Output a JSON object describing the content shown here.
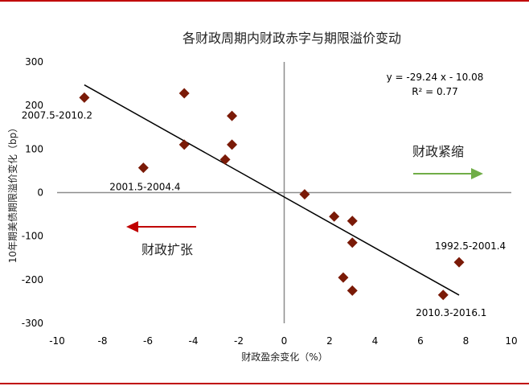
{
  "chart_data": {
    "type": "scatter",
    "title": "各财政周期内财政赤字与期限溢价变动",
    "xlabel": "财政盈余变化（%）",
    "ylabel": "10年期美债期限溢价变化（bp）",
    "xlim": [
      -10,
      10
    ],
    "ylim": [
      -300,
      300
    ],
    "xticks": [
      -10,
      -8,
      -6,
      -4,
      -2,
      0,
      2,
      4,
      6,
      8,
      10
    ],
    "yticks": [
      -300,
      -200,
      -100,
      0,
      100,
      200,
      300
    ],
    "grid": false,
    "marker_color": "#7a1a07",
    "points": [
      {
        "x": -8.8,
        "y": 218
      },
      {
        "x": -4.4,
        "y": 228
      },
      {
        "x": -2.3,
        "y": 176
      },
      {
        "x": -4.4,
        "y": 110
      },
      {
        "x": -2.3,
        "y": 110
      },
      {
        "x": -2.6,
        "y": 76
      },
      {
        "x": -6.2,
        "y": 57
      },
      {
        "x": 0.9,
        "y": -4
      },
      {
        "x": 2.2,
        "y": -55
      },
      {
        "x": 3.0,
        "y": -65
      },
      {
        "x": 3.0,
        "y": -115
      },
      {
        "x": 2.6,
        "y": -195
      },
      {
        "x": 3.0,
        "y": -225
      },
      {
        "x": 7.7,
        "y": -160
      },
      {
        "x": 7.0,
        "y": -235
      }
    ],
    "trendline": {
      "slope": -29.24,
      "intercept": -10.08,
      "x_range": [
        -8.8,
        7.7
      ],
      "equation": "y = -29.24 x - 10.08",
      "r2": "R² = 0.77"
    },
    "point_labels": [
      {
        "text": "2007.5-2010.2",
        "x": -8.8,
        "y": 218
      },
      {
        "text": "2001.5-2004.4",
        "x": -6.2,
        "y": 57
      },
      {
        "text": "1992.5-2001.4",
        "x": 7.7,
        "y": -160
      },
      {
        "text": "2010.3-2016.1",
        "x": 7.0,
        "y": -235
      }
    ],
    "annotations": [
      {
        "text": "财政紧缩",
        "direction": "right",
        "color": "#70ad47"
      },
      {
        "text": "财政扩张",
        "direction": "left",
        "color": "#c00000"
      }
    ]
  }
}
